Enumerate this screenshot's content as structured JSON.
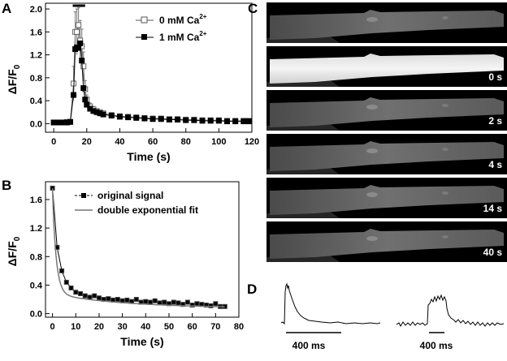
{
  "panels": {
    "A": "A",
    "B": "B",
    "C": "C",
    "D": "D"
  },
  "chart_data": [
    {
      "id": "A",
      "type": "line",
      "title": "",
      "xlabel": "Time (s)",
      "ylabel": "ΔF/F0",
      "xlim": [
        -5,
        120
      ],
      "ylim": [
        -0.15,
        2.1
      ],
      "xticks": [
        0,
        20,
        40,
        60,
        80,
        100,
        120
      ],
      "yticks": [
        0.0,
        0.4,
        0.8,
        1.2,
        1.6,
        2.0
      ],
      "xtick_labels": [
        "0",
        "20",
        "40",
        "60",
        "80",
        "100",
        "120"
      ],
      "ytick_labels": [
        "0.0",
        "0.4",
        "0.8",
        "1.2",
        "1.6",
        "2.0"
      ],
      "stimulus_bar": [
        11.5,
        19
      ],
      "legend": [
        "0 mM Ca",
        "1 mM Ca"
      ],
      "legend_sup": "2+",
      "series": [
        {
          "name": "0 mM Ca2+",
          "marker": "open-square",
          "x": [
            0,
            2,
            4,
            6,
            8,
            10,
            12,
            13,
            14,
            15,
            16,
            17,
            18,
            19,
            20,
            22,
            24,
            26,
            28,
            30,
            35,
            40,
            45,
            50,
            55,
            60,
            65,
            70,
            75,
            80,
            85,
            90,
            95,
            100,
            105,
            110,
            115,
            118
          ],
          "y": [
            0.02,
            0.02,
            0.02,
            0.02,
            0.03,
            0.03,
            0.7,
            1.6,
            1.6,
            1.72,
            1.45,
            1.35,
            1.0,
            0.6,
            0.42,
            0.3,
            0.25,
            0.22,
            0.2,
            0.18,
            0.15,
            0.13,
            0.12,
            0.11,
            0.1,
            0.09,
            0.09,
            0.08,
            0.08,
            0.07,
            0.07,
            0.06,
            0.06,
            0.06,
            0.05,
            0.05,
            0.05,
            0.05
          ],
          "err": [
            0.01,
            0.01,
            0.01,
            0.01,
            0.01,
            0.02,
            0.3,
            0.35,
            0.4,
            0.3,
            0.35,
            0.3,
            0.25,
            0.15,
            0.08,
            0.06,
            0.05,
            0.04,
            0.04,
            0.03,
            0.03,
            0.02,
            0.02,
            0.02,
            0.02,
            0.02,
            0.02,
            0.02,
            0.02,
            0.02,
            0.02,
            0.02,
            0.02,
            0.02,
            0.02,
            0.02,
            0.02,
            0.02
          ]
        },
        {
          "name": "1 mM Ca2+",
          "marker": "filled-square",
          "x": [
            0,
            2,
            4,
            6,
            8,
            10,
            12,
            13,
            14,
            15,
            16,
            17,
            18,
            19,
            20,
            22,
            24,
            26,
            28,
            30,
            35,
            40,
            45,
            50,
            55,
            60,
            65,
            70,
            75,
            80,
            85,
            90,
            95,
            100,
            105,
            110,
            115,
            118
          ],
          "y": [
            0.02,
            0.02,
            0.02,
            0.02,
            0.02,
            0.03,
            0.5,
            1.3,
            1.33,
            1.32,
            1.4,
            1.1,
            0.62,
            0.42,
            0.33,
            0.26,
            0.22,
            0.2,
            0.18,
            0.16,
            0.14,
            0.12,
            0.11,
            0.1,
            0.09,
            0.08,
            0.08,
            0.07,
            0.07,
            0.06,
            0.06,
            0.05,
            0.05,
            0.05,
            0.04,
            0.04,
            0.04,
            0.04
          ]
        }
      ]
    },
    {
      "id": "B",
      "type": "line",
      "title": "",
      "xlabel": "Time (s)",
      "ylabel": "ΔF/F0",
      "xlim": [
        -3,
        80
      ],
      "ylim": [
        -0.05,
        1.85
      ],
      "xticks": [
        0,
        10,
        20,
        30,
        40,
        50,
        60,
        70,
        80
      ],
      "yticks": [
        0.0,
        0.4,
        0.8,
        1.2,
        1.6
      ],
      "xtick_labels": [
        "0",
        "10",
        "20",
        "30",
        "40",
        "50",
        "60",
        "70",
        "80"
      ],
      "ytick_labels": [
        "0.0",
        "0.4",
        "0.8",
        "1.2",
        "1.6"
      ],
      "legend": [
        "original signal",
        "double exponential fit"
      ],
      "series": [
        {
          "name": "original signal",
          "marker": "filled-square",
          "x": [
            0,
            2,
            4,
            6,
            8,
            10,
            12,
            14,
            16,
            18,
            20,
            22,
            24,
            26,
            28,
            30,
            32,
            34,
            36,
            38,
            40,
            42,
            44,
            46,
            48,
            50,
            52,
            54,
            56,
            58,
            60,
            62,
            64,
            66,
            68,
            70,
            72,
            74
          ],
          "y": [
            1.76,
            0.93,
            0.6,
            0.44,
            0.36,
            0.3,
            0.28,
            0.25,
            0.23,
            0.25,
            0.22,
            0.2,
            0.21,
            0.19,
            0.2,
            0.18,
            0.19,
            0.17,
            0.2,
            0.16,
            0.17,
            0.16,
            0.18,
            0.15,
            0.16,
            0.14,
            0.16,
            0.15,
            0.13,
            0.16,
            0.12,
            0.14,
            0.13,
            0.12,
            0.11,
            0.14,
            0.1,
            0.1
          ]
        },
        {
          "name": "double exponential fit",
          "fit": {
            "a1": 1.4,
            "tau1": 1.6,
            "a2": 0.2,
            "tau2": 30,
            "c": 0.08
          }
        }
      ]
    }
  ],
  "panel_c": {
    "frames": [
      "",
      "0 s",
      "2 s",
      "4 s",
      "14 s",
      "40 s"
    ]
  },
  "panel_d": {
    "scale_left": "400 ms",
    "scale_right": "400 ms"
  }
}
